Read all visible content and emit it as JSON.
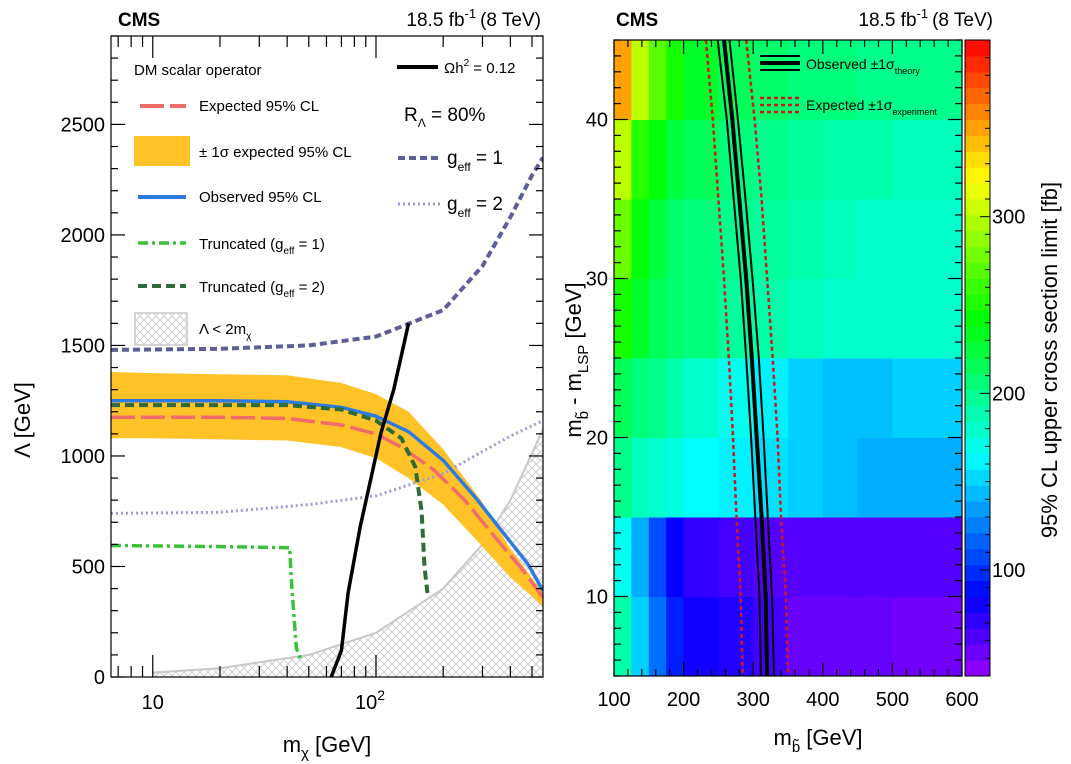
{
  "chart_data": [
    {
      "type": "line",
      "experiment": "CMS",
      "lumi": "18.5 fb",
      "lumi_sup": "-1",
      "energy": "(8 TeV)",
      "xlabel": "m",
      "xlabel_sub": "χ",
      "xlabel_unit": " [GeV]",
      "ylabel": "Λ [GeV]",
      "xscale": "log",
      "xlim": [
        6.5,
        560
      ],
      "ylim": [
        0,
        2900
      ],
      "xticks": [
        {
          "v": 10,
          "label": "10"
        },
        {
          "v": 100,
          "label": "10",
          "sup": "2"
        }
      ],
      "yticks": [
        0,
        500,
        1000,
        1500,
        2000,
        2500
      ],
      "legend": {
        "header": "DM scalar operator",
        "expected": "Expected 95% CL",
        "band": "± 1σ expected 95% CL",
        "observed": "Observed 95% CL",
        "trunc1": "Truncated (g",
        "trunc1_sub": "eff",
        "trunc1_end": " = 1)",
        "trunc2": "Truncated (g",
        "trunc2_sub": "eff",
        "trunc2_end": " = 2)",
        "hatch": "Λ < 2m",
        "hatch_sub": "χ",
        "relic": "Ωh",
        "relic_sup": "2",
        "relic_end": " = 0.12",
        "ratio": "R",
        "ratio_sub": "Λ",
        "ratio_end": " = 80%",
        "geff1": "g",
        "geff1_sub": "eff",
        "geff1_end": " = 1",
        "geff2": "g",
        "geff2_sub": "eff",
        "geff2_end": " = 2"
      },
      "colors": {
        "expected": "#f26b6b",
        "band": "#ffc328",
        "observed": "#2e7be0",
        "trunc1": "#39c23a",
        "trunc2": "#2f6a3a",
        "geff": "#5c5f97",
        "relic": "#000000",
        "hatch": "#c8c8c8"
      },
      "series": {
        "band_upper": [
          [
            6.5,
            1380
          ],
          [
            10,
            1375
          ],
          [
            20,
            1370
          ],
          [
            40,
            1365
          ],
          [
            70,
            1330
          ],
          [
            100,
            1280
          ],
          [
            140,
            1200
          ],
          [
            200,
            1030
          ],
          [
            300,
            790
          ],
          [
            400,
            580
          ],
          [
            560,
            380
          ]
        ],
        "band_lower": [
          [
            6.5,
            1080
          ],
          [
            10,
            1080
          ],
          [
            20,
            1075
          ],
          [
            40,
            1070
          ],
          [
            70,
            1040
          ],
          [
            100,
            990
          ],
          [
            140,
            900
          ],
          [
            200,
            780
          ],
          [
            300,
            590
          ],
          [
            400,
            450
          ],
          [
            560,
            320
          ]
        ],
        "expected": [
          [
            6.5,
            1175
          ],
          [
            20,
            1175
          ],
          [
            40,
            1170
          ],
          [
            70,
            1140
          ],
          [
            100,
            1100
          ],
          [
            130,
            1040
          ],
          [
            180,
            940
          ],
          [
            250,
            800
          ],
          [
            350,
            620
          ],
          [
            450,
            490
          ],
          [
            560,
            360
          ]
        ],
        "observed": [
          [
            6.5,
            1250
          ],
          [
            20,
            1250
          ],
          [
            40,
            1245
          ],
          [
            70,
            1220
          ],
          [
            100,
            1180
          ],
          [
            140,
            1110
          ],
          [
            200,
            980
          ],
          [
            280,
            810
          ],
          [
            380,
            640
          ],
          [
            480,
            510
          ],
          [
            560,
            390
          ]
        ],
        "trunc1": [
          [
            6.5,
            595
          ],
          [
            20,
            590
          ],
          [
            41,
            585
          ],
          [
            42,
            400
          ],
          [
            44,
            130
          ],
          [
            46,
            80
          ]
        ],
        "trunc2": [
          [
            6.5,
            1230
          ],
          [
            40,
            1230
          ],
          [
            70,
            1210
          ],
          [
            100,
            1160
          ],
          [
            130,
            1080
          ],
          [
            150,
            950
          ],
          [
            160,
            750
          ],
          [
            165,
            500
          ],
          [
            170,
            380
          ]
        ],
        "geff1": [
          [
            6.5,
            1480
          ],
          [
            20,
            1485
          ],
          [
            50,
            1500
          ],
          [
            100,
            1540
          ],
          [
            200,
            1660
          ],
          [
            300,
            1860
          ],
          [
            400,
            2080
          ],
          [
            500,
            2270
          ],
          [
            560,
            2350
          ]
        ],
        "geff2": [
          [
            6.5,
            740
          ],
          [
            20,
            745
          ],
          [
            50,
            780
          ],
          [
            100,
            820
          ],
          [
            200,
            920
          ],
          [
            300,
            1020
          ],
          [
            400,
            1090
          ],
          [
            560,
            1160
          ]
        ],
        "relic": [
          [
            63,
            0
          ],
          [
            70,
            120
          ],
          [
            75,
            380
          ],
          [
            85,
            680
          ],
          [
            95,
            900
          ],
          [
            105,
            1100
          ],
          [
            120,
            1300
          ],
          [
            140,
            1600
          ]
        ],
        "hatch_boundary": [
          [
            10,
            20
          ],
          [
            20,
            40
          ],
          [
            50,
            100
          ],
          [
            100,
            200
          ],
          [
            200,
            400
          ],
          [
            300,
            600
          ],
          [
            400,
            800
          ],
          [
            560,
            1120
          ]
        ]
      }
    },
    {
      "type": "heatmap",
      "experiment": "CMS",
      "lumi": "18.5 fb",
      "lumi_sup": "-1",
      "energy": "(8 TeV)",
      "xlabel": "m",
      "xlabel_sub": "b̃",
      "xlabel_unit": " [GeV]",
      "ylabel": "m",
      "ylabel_sub1": "b̃",
      "ylabel_mid": " - m",
      "ylabel_sub2": "LSP",
      "ylabel_unit": " [GeV]",
      "zlabel": "95% CL upper cross section limit [fb]",
      "xlim": [
        100,
        600
      ],
      "ylim": [
        5,
        45
      ],
      "zlim": [
        40,
        400
      ],
      "xticks": [
        100,
        200,
        300,
        400,
        500,
        600
      ],
      "yticks": [
        10,
        20,
        30,
        40
      ],
      "zticks": [
        100,
        200,
        300
      ],
      "legend": {
        "observed": "Observed ±1σ",
        "observed_sub": "theory",
        "expected": "Expected ±1σ",
        "expected_sub": "experiment"
      },
      "colors": {
        "observed": "#000000",
        "expected": "#d01818"
      },
      "x_bins": [
        100,
        125,
        150,
        175,
        200,
        250,
        300,
        350,
        400,
        450,
        500,
        550,
        600
      ],
      "y_bins": [
        5,
        10,
        15,
        20,
        25,
        30,
        35,
        40,
        45
      ],
      "z": [
        [
          190,
          150,
          120,
          95,
          80,
          75,
          65,
          55,
          55,
          55,
          50,
          50
        ],
        [
          170,
          140,
          110,
          85,
          70,
          65,
          60,
          60,
          60,
          60,
          60,
          60
        ],
        [
          200,
          185,
          180,
          175,
          165,
          160,
          155,
          150,
          145,
          140,
          140,
          140
        ],
        [
          215,
          205,
          200,
          190,
          180,
          170,
          160,
          150,
          145,
          145,
          150,
          150
        ],
        [
          250,
          230,
          215,
          210,
          205,
          195,
          190,
          185,
          180,
          180,
          180,
          180
        ],
        [
          275,
          240,
          225,
          210,
          205,
          200,
          195,
          190,
          185,
          180,
          180,
          180
        ],
        [
          300,
          255,
          240,
          225,
          215,
          205,
          200,
          195,
          190,
          190,
          185,
          185
        ],
        [
          350,
          300,
          270,
          250,
          230,
          215,
          210,
          205,
          205,
          200,
          200,
          200
        ]
      ],
      "series": {
        "observed": [
          [
            258,
            45
          ],
          [
            270,
            40
          ],
          [
            280,
            35
          ],
          [
            290,
            30
          ],
          [
            298,
            25
          ],
          [
            305,
            20
          ],
          [
            312,
            15
          ],
          [
            318,
            10
          ],
          [
            320,
            5
          ]
        ],
        "observed_up": [
          [
            266,
            45
          ],
          [
            278,
            40
          ],
          [
            289,
            35
          ],
          [
            299,
            30
          ],
          [
            308,
            25
          ],
          [
            315,
            20
          ],
          [
            321,
            15
          ],
          [
            327,
            10
          ],
          [
            330,
            5
          ]
        ],
        "observed_down": [
          [
            249,
            45
          ],
          [
            262,
            40
          ],
          [
            272,
            35
          ],
          [
            282,
            30
          ],
          [
            290,
            25
          ],
          [
            297,
            20
          ],
          [
            303,
            15
          ],
          [
            309,
            10
          ],
          [
            311,
            5
          ]
        ],
        "expected": [
          [
            258,
            45
          ],
          [
            270,
            40
          ],
          [
            280,
            35
          ],
          [
            290,
            30
          ],
          [
            298,
            25
          ],
          [
            305,
            20
          ],
          [
            312,
            15
          ],
          [
            318,
            10
          ],
          [
            320,
            5
          ]
        ],
        "expected_up": [
          [
            290,
            45
          ],
          [
            302,
            40
          ],
          [
            312,
            35
          ],
          [
            320,
            30
          ],
          [
            328,
            25
          ],
          [
            335,
            20
          ],
          [
            340,
            15
          ],
          [
            347,
            10
          ],
          [
            350,
            5
          ]
        ],
        "expected_down": [
          [
            232,
            45
          ],
          [
            242,
            40
          ],
          [
            250,
            35
          ],
          [
            258,
            30
          ],
          [
            265,
            25
          ],
          [
            271,
            20
          ],
          [
            276,
            15
          ],
          [
            282,
            10
          ],
          [
            285,
            5
          ]
        ]
      }
    }
  ]
}
